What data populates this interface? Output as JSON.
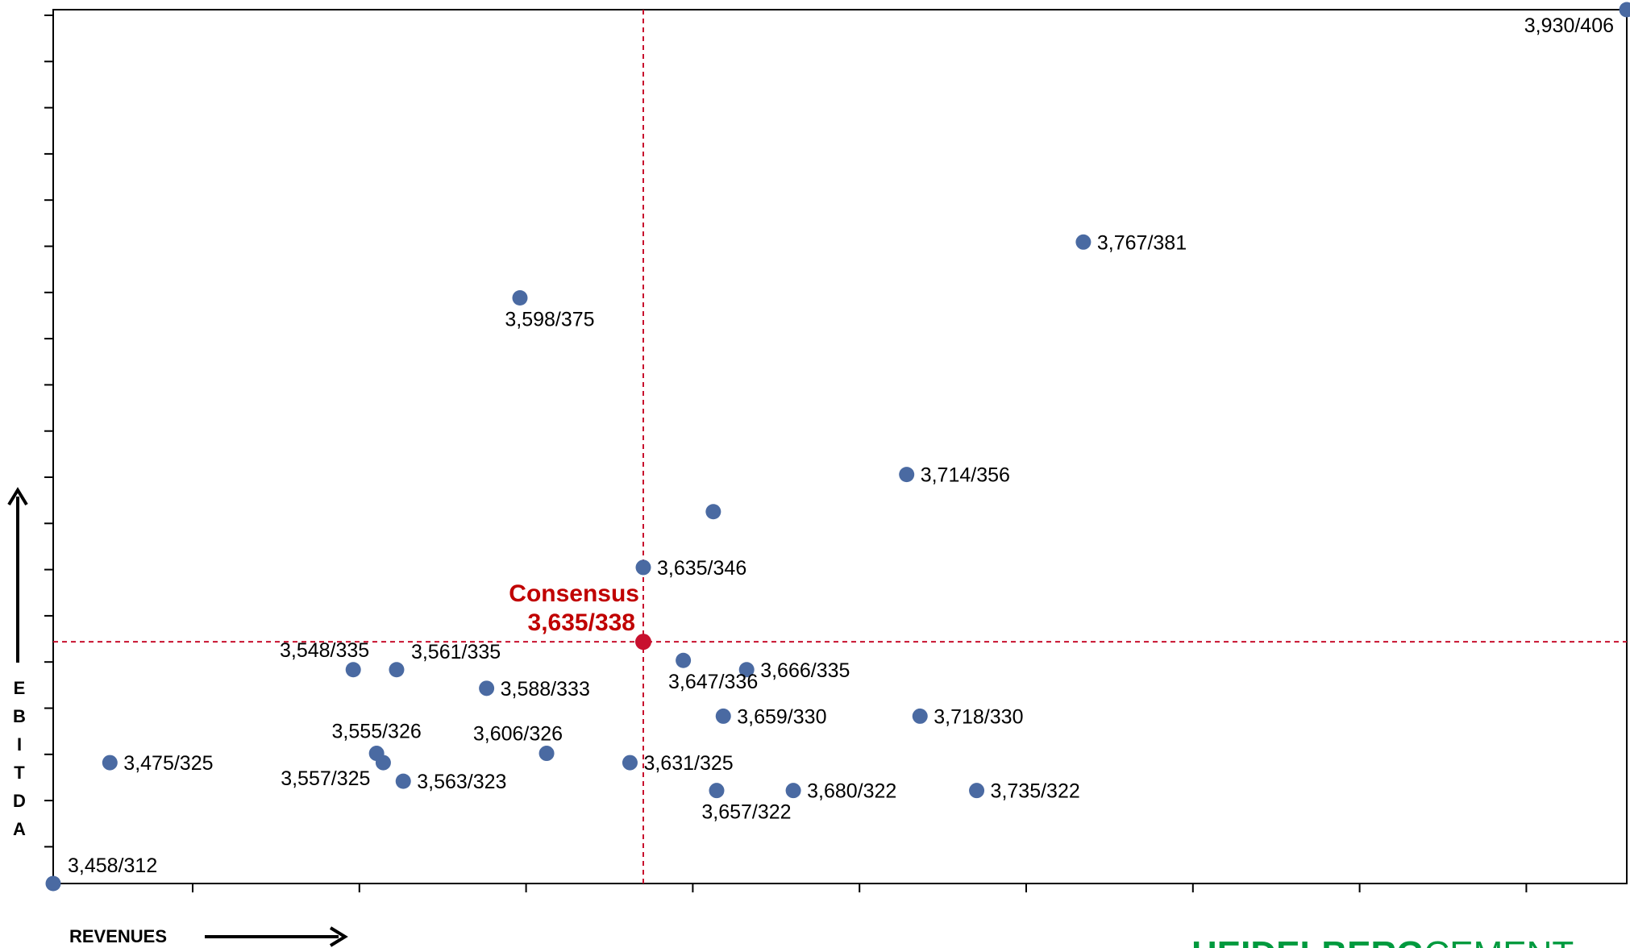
{
  "chart_data": {
    "type": "scatter",
    "xlabel": "REVENUES",
    "ylabel_letters": [
      "E",
      "B",
      "I",
      "T",
      "D",
      "A"
    ],
    "xlim": [
      3458,
      3930
    ],
    "ylim": [
      312,
      406
    ],
    "grid": false,
    "point_color": "#4a6aa2",
    "consensus_color": "#c8102e",
    "points": [
      {
        "x": 3930,
        "y": 406,
        "label": "3,930/406",
        "pos": "bl"
      },
      {
        "x": 3767,
        "y": 381,
        "label": "3,767/381",
        "pos": "r"
      },
      {
        "x": 3598,
        "y": 375,
        "label": "3,598/375",
        "pos": "b"
      },
      {
        "x": 3714,
        "y": 356,
        "label": "3,714/356",
        "pos": "r"
      },
      {
        "x": 3656,
        "y": 352,
        "label": "",
        "pos": "r"
      },
      {
        "x": 3635,
        "y": 346,
        "label": "3,635/346",
        "pos": "r"
      },
      {
        "x": 3548,
        "y": 335,
        "label": "3,548/335",
        "pos": "tl"
      },
      {
        "x": 3561,
        "y": 335,
        "label": "3,561/335",
        "pos": "tr"
      },
      {
        "x": 3588,
        "y": 333,
        "label": "3,588/333",
        "pos": "r"
      },
      {
        "x": 3647,
        "y": 336,
        "label": "3,647/336",
        "pos": "b"
      },
      {
        "x": 3666,
        "y": 335,
        "label": "3,666/335",
        "pos": "r"
      },
      {
        "x": 3659,
        "y": 330,
        "label": "3,659/330",
        "pos": "r"
      },
      {
        "x": 3718,
        "y": 330,
        "label": "3,718/330",
        "pos": "r"
      },
      {
        "x": 3555,
        "y": 326,
        "label": "3,555/326",
        "pos": "t"
      },
      {
        "x": 3606,
        "y": 326,
        "label": "3,606/326",
        "pos": "tl"
      },
      {
        "x": 3475,
        "y": 325,
        "label": "3,475/325",
        "pos": "r"
      },
      {
        "x": 3631,
        "y": 325,
        "label": "3,631/325",
        "pos": "r"
      },
      {
        "x": 3557,
        "y": 325,
        "label": "3,557/325",
        "pos": "bl"
      },
      {
        "x": 3563,
        "y": 323,
        "label": "3,563/323",
        "pos": "r"
      },
      {
        "x": 3657,
        "y": 322,
        "label": "3,657/322",
        "pos": "b"
      },
      {
        "x": 3680,
        "y": 322,
        "label": "3,680/322",
        "pos": "r"
      },
      {
        "x": 3735,
        "y": 322,
        "label": "3,735/322",
        "pos": "r"
      },
      {
        "x": 3458,
        "y": 312,
        "label": "3,458/312",
        "pos": "tr"
      }
    ],
    "consensus": {
      "x": 3635,
      "y": 338,
      "title": "Consensus",
      "label": "3,635/338"
    }
  },
  "logo": {
    "part1": "HEIDELBERG",
    "part2": "CEMENT",
    "color": "#009a3e"
  }
}
